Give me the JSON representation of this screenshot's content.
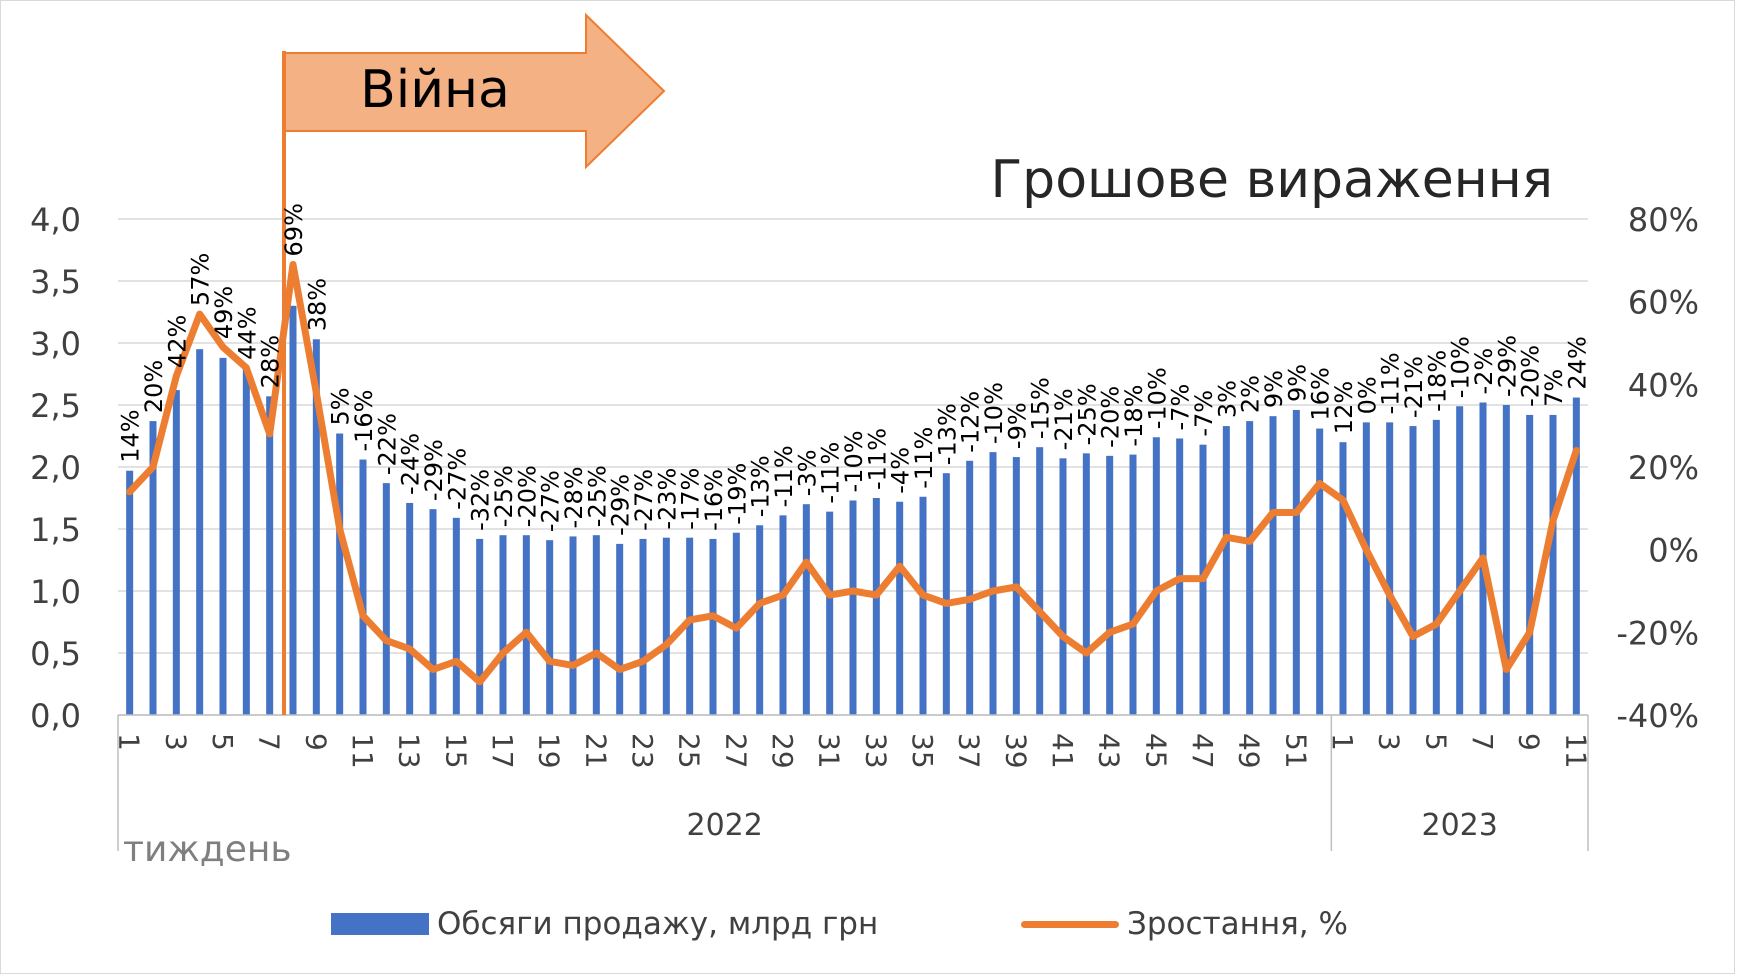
{
  "chart_data": {
    "type": "bar+line",
    "title": "Грошове вираження",
    "annotation": "Війна",
    "xlabel": "тиждень",
    "year_groups": [
      {
        "label": "2022",
        "weeks": 52
      },
      {
        "label": "2023",
        "weeks": 11
      }
    ],
    "x_tick_labels": [
      "1",
      "3",
      "5",
      "7",
      "9",
      "11",
      "13",
      "15",
      "17",
      "19",
      "21",
      "23",
      "25",
      "27",
      "29",
      "31",
      "33",
      "35",
      "37",
      "39",
      "41",
      "43",
      "45",
      "47",
      "49",
      "51",
      "1",
      "3",
      "5",
      "7",
      "9",
      "11"
    ],
    "y_left": {
      "ticks": [
        "0,0",
        "0,5",
        "1,0",
        "1,5",
        "2,0",
        "2,5",
        "3,0",
        "3,5",
        "4,0"
      ],
      "ylim": [
        0,
        4
      ]
    },
    "y_right": {
      "ticks": [
        "-40%",
        "-20%",
        "0%",
        "20%",
        "40%",
        "60%",
        "80%"
      ],
      "ylim": [
        -40,
        80
      ]
    },
    "grid": true,
    "legend_position": "bottom",
    "colors": {
      "bars": "#4472c4",
      "line": "#ed7d31",
      "arrow_fill": "#f4b183",
      "arrow_stroke": "#ed7d31"
    },
    "series": [
      {
        "name": "Обсяги продажу, млрд грн",
        "type": "bar",
        "values": [
          1.97,
          2.37,
          2.62,
          2.95,
          2.88,
          2.79,
          2.57,
          3.3,
          3.03,
          2.27,
          2.06,
          1.87,
          1.71,
          1.66,
          1.59,
          1.42,
          1.45,
          1.45,
          1.41,
          1.44,
          1.45,
          1.38,
          1.42,
          1.43,
          1.43,
          1.42,
          1.47,
          1.53,
          1.61,
          1.7,
          1.64,
          1.73,
          1.75,
          1.72,
          1.76,
          1.95,
          2.05,
          2.12,
          2.08,
          2.16,
          2.07,
          2.11,
          2.09,
          2.1,
          2.24,
          2.23,
          2.18,
          2.33,
          2.37,
          2.41,
          2.46,
          2.31,
          2.2,
          2.36,
          2.36,
          2.33,
          2.38,
          2.49,
          2.52,
          2.5,
          2.42,
          2.42,
          2.56
        ]
      },
      {
        "name": "Зростання, %",
        "type": "line",
        "values": [
          14,
          20,
          42,
          57,
          49,
          44,
          28,
          69,
          38,
          5,
          -16,
          -22,
          -24,
          -29,
          -27,
          -32,
          -25,
          -20,
          -27,
          -28,
          -25,
          -29,
          -27,
          -23,
          -17,
          -16,
          -19,
          -13,
          -11,
          -3,
          -11,
          -10,
          -11,
          -4,
          -11,
          -13,
          -12,
          -10,
          -9,
          -15,
          -21,
          -25,
          -20,
          -18,
          -10,
          -7,
          -7,
          3,
          2,
          9,
          9,
          16,
          12,
          0,
          -11,
          -21,
          -18,
          -10,
          -2,
          -29,
          -20,
          7,
          24
        ],
        "labels": [
          "14%",
          "20%",
          "42%",
          "57%",
          "49%",
          "44%",
          "28%",
          "69%",
          "38%",
          "5%",
          "-16%",
          "-22%",
          "-24%",
          "-29%",
          "-27%",
          "-32%",
          "-25%",
          "-20%",
          "-27%",
          "-28%",
          "-25%",
          "-29%",
          "-27%",
          "-23%",
          "-17%",
          "-16%",
          "-19%",
          "-13%",
          "-11%",
          "-3%",
          "-11%",
          "-10%",
          "-11%",
          "-4%",
          "-11%",
          "-13%",
          "-12%",
          "-10%",
          "-9%",
          "-15%",
          "-21%",
          "-25%",
          "-20%",
          "-18%",
          "-10%",
          "-7%",
          "-7%",
          "3%",
          "2%",
          "9%",
          "9%",
          "16%",
          "12%",
          "0%",
          "-11%",
          "-21%",
          "-18%",
          "-10%",
          "-2%",
          "-29%",
          "-20%",
          "7%",
          "24%"
        ]
      }
    ]
  },
  "legend": {
    "bars_label": "Обсяги продажу, млрд грн",
    "line_label": "Зростання, %"
  }
}
